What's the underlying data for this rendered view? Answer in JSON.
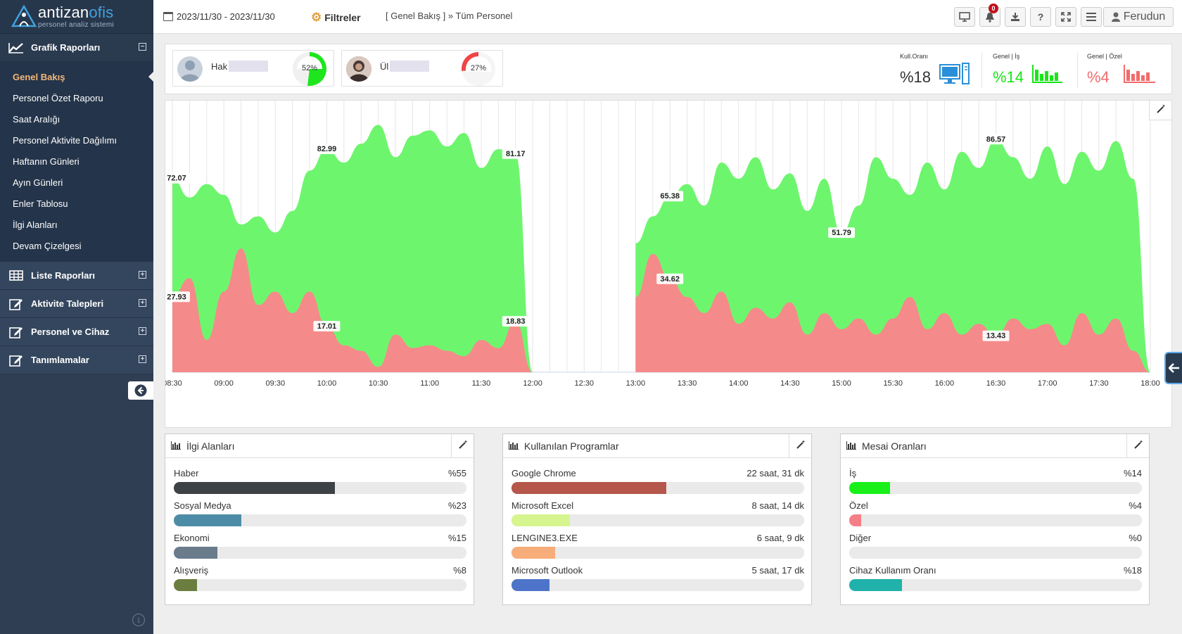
{
  "sidebar": {
    "brand_prefix": "antizan",
    "brand_suffix": "ofis",
    "tagline": "personel analiz sistemi",
    "sections": [
      {
        "label": "Grafik Raporları",
        "toggle": "⊟",
        "icon": "chart-line-icon"
      },
      {
        "label": "Liste Raporları",
        "toggle": "⊞",
        "icon": "table-icon"
      },
      {
        "label": "Aktivite Talepleri",
        "toggle": "⊞",
        "icon": "edit-icon"
      },
      {
        "label": "Personel ve Cihaz",
        "toggle": "⊞",
        "icon": "edit-icon"
      },
      {
        "label": "Tanımlamalar",
        "toggle": "⊞",
        "icon": "edit-icon"
      }
    ],
    "items": [
      "Genel Bakış",
      "Personel Özet Raporu",
      "Saat Aralığı",
      "Personel Aktivite Dağılımı",
      "Haftanın Günleri",
      "Ayın Günleri",
      "Enler Tablosu",
      "İlgi Alanları",
      "Devam Çizelgesi"
    ]
  },
  "topbar": {
    "date_range": "2023/11/30 - 2023/11/30",
    "filters": "Filtreler",
    "breadcrumb": "[ Genel Bakış ] » Tüm Personel",
    "notification_count": "0",
    "user": "Ferudun"
  },
  "persons": [
    {
      "name": "Hak",
      "percent": "52%"
    },
    {
      "name": "Ül",
      "percent": "27%"
    }
  ],
  "stats": [
    {
      "label": "Kull.Oranı",
      "value": "%18",
      "color": "#333333"
    },
    {
      "label": "Genel | İş",
      "value": "%14",
      "color": "#19e619"
    },
    {
      "label": "Genel | Özel",
      "value": "%4",
      "color": "#f26b6b"
    }
  ],
  "chart_data": {
    "type": "area",
    "x_ticks": [
      "08:30",
      "09:00",
      "09:30",
      "10:00",
      "10:30",
      "11:00",
      "11:30",
      "12:00",
      "12:30",
      "13:00",
      "13:30",
      "14:00",
      "14:30",
      "15:00",
      "15:30",
      "16:00",
      "16:30",
      "17:00",
      "17:30",
      "18:00"
    ],
    "series": [
      {
        "color": "#6ef56e",
        "points": [
          [
            "08:30",
            72.07
          ],
          [
            "08:40",
            65
          ],
          [
            "08:50",
            70
          ],
          [
            "09:00",
            66
          ],
          [
            "09:10",
            55
          ],
          [
            "09:20",
            58
          ],
          [
            "09:30",
            52
          ],
          [
            "09:40",
            60
          ],
          [
            "09:50",
            75
          ],
          [
            "10:00",
            82.99
          ],
          [
            "10:10",
            78
          ],
          [
            "10:20",
            85
          ],
          [
            "10:30",
            92
          ],
          [
            "10:40",
            80
          ],
          [
            "10:50",
            88
          ],
          [
            "11:00",
            90
          ],
          [
            "11:10",
            84
          ],
          [
            "11:20",
            89
          ],
          [
            "11:30",
            76
          ],
          [
            "11:40",
            83
          ],
          [
            "11:50",
            81.17
          ],
          [
            "12:00",
            0
          ],
          [
            "12:30",
            0
          ],
          [
            "13:00",
            48
          ],
          [
            "13:10",
            58
          ],
          [
            "13:20",
            65.38
          ],
          [
            "13:30",
            70
          ],
          [
            "13:40",
            62
          ],
          [
            "13:50",
            78
          ],
          [
            "14:00",
            72
          ],
          [
            "14:10",
            80
          ],
          [
            "14:20",
            68
          ],
          [
            "14:30",
            74
          ],
          [
            "14:40",
            60
          ],
          [
            "14:50",
            72
          ],
          [
            "15:00",
            51.79
          ],
          [
            "15:10",
            62
          ],
          [
            "15:20",
            80
          ],
          [
            "15:30",
            72
          ],
          [
            "15:40",
            66
          ],
          [
            "15:50",
            78
          ],
          [
            "16:00",
            68
          ],
          [
            "16:10",
            82
          ],
          [
            "16:20",
            76
          ],
          [
            "16:30",
            86.57
          ],
          [
            "16:40",
            80
          ],
          [
            "16:50",
            72
          ],
          [
            "17:00",
            84
          ],
          [
            "17:10",
            70
          ],
          [
            "17:20",
            82
          ],
          [
            "17:30",
            75
          ],
          [
            "17:40",
            86
          ],
          [
            "17:50",
            72
          ],
          [
            "18:00",
            0
          ]
        ]
      },
      {
        "color": "#f58a8a",
        "points": [
          [
            "08:30",
            27.93
          ],
          [
            "08:40",
            35
          ],
          [
            "08:50",
            12
          ],
          [
            "09:00",
            30
          ],
          [
            "09:10",
            46
          ],
          [
            "09:20",
            25
          ],
          [
            "09:30",
            30
          ],
          [
            "09:40",
            22
          ],
          [
            "09:50",
            30
          ],
          [
            "10:00",
            17.01
          ],
          [
            "10:10",
            10
          ],
          [
            "10:20",
            8
          ],
          [
            "10:30",
            2
          ],
          [
            "10:40",
            14
          ],
          [
            "10:50",
            9
          ],
          [
            "11:00",
            10
          ],
          [
            "11:10",
            8
          ],
          [
            "11:20",
            6
          ],
          [
            "11:30",
            12
          ],
          [
            "11:40",
            9
          ],
          [
            "11:50",
            18.83
          ],
          [
            "12:00",
            0
          ],
          [
            "12:30",
            0
          ],
          [
            "13:00",
            28
          ],
          [
            "13:10",
            44
          ],
          [
            "13:20",
            34.62
          ],
          [
            "13:30",
            28
          ],
          [
            "13:40",
            22
          ],
          [
            "13:50",
            30
          ],
          [
            "14:00",
            18
          ],
          [
            "14:10",
            24
          ],
          [
            "14:20",
            20
          ],
          [
            "14:30",
            26
          ],
          [
            "14:40",
            14
          ],
          [
            "14:50",
            22
          ],
          [
            "15:00",
            16
          ],
          [
            "15:10",
            20
          ],
          [
            "15:20",
            14
          ],
          [
            "15:30",
            20
          ],
          [
            "15:40",
            28
          ],
          [
            "15:50",
            16
          ],
          [
            "16:00",
            22
          ],
          [
            "16:10",
            14
          ],
          [
            "16:20",
            18
          ],
          [
            "16:30",
            13.43
          ],
          [
            "16:40",
            20
          ],
          [
            "16:50",
            16
          ],
          [
            "17:00",
            18
          ],
          [
            "17:10",
            10
          ],
          [
            "17:20",
            22
          ],
          [
            "17:30",
            14
          ],
          [
            "17:40",
            20
          ],
          [
            "17:50",
            8
          ],
          [
            "18:00",
            0
          ]
        ]
      }
    ],
    "data_labels": [
      {
        "x": "08:30",
        "y": 72.07,
        "text": "72.07"
      },
      {
        "x": "08:30",
        "y": 27.93,
        "text": "27.93"
      },
      {
        "x": "10:00",
        "y": 82.99,
        "text": "82.99"
      },
      {
        "x": "10:00",
        "y": 17.01,
        "text": "17.01"
      },
      {
        "x": "11:50",
        "y": 81.17,
        "text": "81.17"
      },
      {
        "x": "11:50",
        "y": 18.83,
        "text": "18.83"
      },
      {
        "x": "13:20",
        "y": 65.38,
        "text": "65.38"
      },
      {
        "x": "13:20",
        "y": 34.62,
        "text": "34.62"
      },
      {
        "x": "15:00",
        "y": 51.79,
        "text": "51.79"
      },
      {
        "x": "16:30",
        "y": 86.57,
        "text": "86.57"
      },
      {
        "x": "16:30",
        "y": 13.43,
        "text": "13.43"
      }
    ],
    "ylim": [
      0,
      100
    ],
    "xlim": [
      "08:30",
      "18:00"
    ],
    "grid": "vertical"
  },
  "panels": [
    {
      "title": "İlgi Alanları",
      "rows": [
        {
          "label": "Haber",
          "value": "%55",
          "fraction": 0.55,
          "color": "#3f4245"
        },
        {
          "label": "Sosyal Medya",
          "value": "%23",
          "color": "#4d8ca6",
          "fraction": 0.23
        },
        {
          "label": "Ekonomi",
          "value": "%15",
          "color": "#6a7b8c",
          "fraction": 0.15
        },
        {
          "label": "Alışveriş",
          "value": "%8",
          "color": "#6b7d3f",
          "fraction": 0.08
        }
      ]
    },
    {
      "title": "Kullanılan Programlar",
      "rows": [
        {
          "label": "Google Chrome",
          "value": "22 saat, 31 dk",
          "color": "#b5574b",
          "fraction": 0.53
        },
        {
          "label": "Microsoft Excel",
          "value": "8 saat, 14 dk",
          "color": "#d6f58f",
          "fraction": 0.2
        },
        {
          "label": "LENGINE3.EXE",
          "value": "6 saat, 9 dk",
          "color": "#f7ad7a",
          "fraction": 0.15
        },
        {
          "label": "Microsoft Outlook",
          "value": "5 saat, 17 dk",
          "color": "#4d74c8",
          "fraction": 0.13
        }
      ]
    },
    {
      "title": "Mesai Oranları",
      "rows": [
        {
          "label": "İş",
          "value": "%14",
          "color": "#19f019",
          "fraction": 0.14
        },
        {
          "label": "Özel",
          "value": "%4",
          "color": "#f57f86",
          "fraction": 0.04
        },
        {
          "label": "Diğer",
          "value": "%0",
          "color": "#cccccc",
          "fraction": 0.0
        },
        {
          "label": "Cihaz Kullanım Oranı",
          "value": "%18",
          "color": "#20b2aa",
          "fraction": 0.18
        }
      ]
    }
  ]
}
